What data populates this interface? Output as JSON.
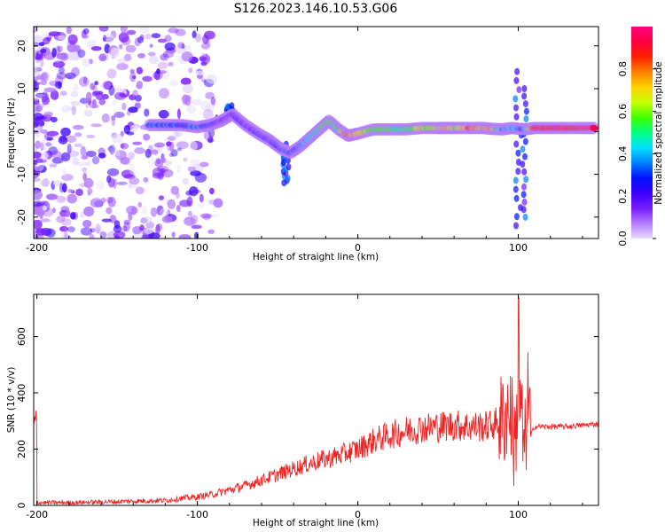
{
  "figure": {
    "title": "S126.2023.146.10.53.G06"
  },
  "chart_data": [
    {
      "type": "heatmap",
      "xlabel": "Height of straight line (km)",
      "ylabel": "Frequency (Hz)",
      "xlim": [
        -202,
        150
      ],
      "ylim": [
        -25,
        24.5
      ],
      "xticks": [
        -200,
        -100,
        0,
        100
      ],
      "yticks": [
        -20,
        -10,
        0,
        10,
        20
      ],
      "grid": false,
      "colorbar": {
        "label": "Normalized spectral amplitude",
        "range": [
          0,
          1
        ],
        "ticks": [
          "0.0",
          "0.2",
          "0.4",
          "0.6",
          "0.8"
        ],
        "colormap": [
          "#e8dcff",
          "#b57bff",
          "#7a1cff",
          "#3a00ff",
          "#0010ff",
          "#0080ff",
          "#00e0ff",
          "#00ff80",
          "#40ff00",
          "#c8ff00",
          "#ffd000",
          "#ff8000",
          "#ff2000",
          "#ff0040",
          "#ff0080"
        ]
      },
      "ridge_points": [
        {
          "x": -130,
          "y": 1.5,
          "v": 0.35
        },
        {
          "x": -120,
          "y": 1.5,
          "v": 0.3
        },
        {
          "x": -110,
          "y": 1.5,
          "v": 0.3
        },
        {
          "x": -100,
          "y": 1.0,
          "v": 0.3
        },
        {
          "x": -92,
          "y": 1.5,
          "v": 0.25
        },
        {
          "x": -85,
          "y": 2.5,
          "v": 0.2
        },
        {
          "x": -78,
          "y": 4.0,
          "v": 0.18
        },
        {
          "x": -70,
          "y": 1.5,
          "v": 0.2
        },
        {
          "x": -62,
          "y": -0.5,
          "v": 0.22
        },
        {
          "x": -55,
          "y": -2.0,
          "v": 0.22
        },
        {
          "x": -48,
          "y": -4.0,
          "v": 0.25
        },
        {
          "x": -42,
          "y": -5.0,
          "v": 0.3
        },
        {
          "x": -36,
          "y": -3.5,
          "v": 0.3
        },
        {
          "x": -30,
          "y": -1.5,
          "v": 0.45
        },
        {
          "x": -24,
          "y": 0.5,
          "v": 0.5
        },
        {
          "x": -18,
          "y": 2.5,
          "v": 0.55
        },
        {
          "x": -12,
          "y": 0.5,
          "v": 0.5
        },
        {
          "x": -6,
          "y": -1.0,
          "v": 0.85
        },
        {
          "x": 0,
          "y": -0.5,
          "v": 0.7
        },
        {
          "x": 10,
          "y": 0.5,
          "v": 0.5
        },
        {
          "x": 20,
          "y": 0.5,
          "v": 0.55
        },
        {
          "x": 30,
          "y": 0.5,
          "v": 0.5
        },
        {
          "x": 40,
          "y": 0.8,
          "v": 0.65
        },
        {
          "x": 50,
          "y": 0.8,
          "v": 0.6
        },
        {
          "x": 55,
          "y": 0.8,
          "v": 0.8
        },
        {
          "x": 62,
          "y": 0.8,
          "v": 0.55
        },
        {
          "x": 70,
          "y": 0.8,
          "v": 0.85
        },
        {
          "x": 78,
          "y": 0.8,
          "v": 0.7
        },
        {
          "x": 84,
          "y": 0.6,
          "v": 0.8
        },
        {
          "x": 90,
          "y": 0.5,
          "v": 0.35
        },
        {
          "x": 96,
          "y": 0.8,
          "v": 0.4
        },
        {
          "x": 104,
          "y": 0.5,
          "v": 0.3
        },
        {
          "x": 110,
          "y": 0.8,
          "v": 0.9
        },
        {
          "x": 120,
          "y": 0.8,
          "v": 0.9
        },
        {
          "x": 130,
          "y": 0.8,
          "v": 0.9
        },
        {
          "x": 140,
          "y": 0.8,
          "v": 0.9
        },
        {
          "x": 148,
          "y": 0.8,
          "v": 0.9
        }
      ]
    },
    {
      "type": "line",
      "xlabel": "Height of straight line (km)",
      "ylabel": "SNR (10 * v/v)",
      "xlim": [
        -202,
        150
      ],
      "ylim": [
        0,
        750
      ],
      "xticks": [
        -200,
        -100,
        0,
        100
      ],
      "yticks": [
        0,
        200,
        400,
        600
      ],
      "grid": false,
      "series": [
        {
          "color": "#ee2222",
          "x": [
            -200,
            -180,
            -160,
            -140,
            -120,
            -110,
            -100,
            -90,
            -80,
            -70,
            -60,
            -50,
            -40,
            -30,
            -20,
            -10,
            0,
            10,
            20,
            30,
            40,
            50,
            60,
            70,
            80,
            85,
            90,
            95,
            98,
            100,
            102,
            104,
            106,
            108,
            110,
            120,
            130,
            140,
            150
          ],
          "y": [
            10,
            10,
            12,
            15,
            18,
            25,
            30,
            40,
            55,
            70,
            90,
            110,
            130,
            150,
            165,
            180,
            200,
            230,
            250,
            265,
            275,
            280,
            285,
            280,
            280,
            290,
            300,
            350,
            200,
            420,
            300,
            180,
            400,
            250,
            280,
            280,
            280,
            285,
            290
          ]
        }
      ]
    }
  ]
}
